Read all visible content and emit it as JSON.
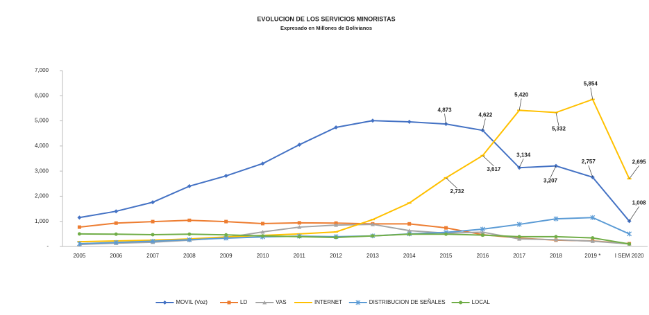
{
  "chart_data": {
    "type": "line",
    "title": "EVOLUCION DE LOS SERVICIOS MINORISTAS",
    "subtitle": "Expresado en Millones  de Bolivianos",
    "categories": [
      "2005",
      "2006",
      "2007",
      "2008",
      "2009",
      "2010",
      "2011",
      "2012",
      "2013",
      "2014",
      "2015",
      "2016",
      "2017",
      "2018",
      "2019 *",
      "I SEM 2020"
    ],
    "ylim": [
      0,
      7000
    ],
    "yticks": [
      {
        "value": 0,
        "label": "-"
      },
      {
        "value": 1000,
        "label": "1,000"
      },
      {
        "value": 2000,
        "label": "2,000"
      },
      {
        "value": 3000,
        "label": "3,000"
      },
      {
        "value": 4000,
        "label": "4,000"
      },
      {
        "value": 5000,
        "label": "5,000"
      },
      {
        "value": 6000,
        "label": "6,000"
      },
      {
        "value": 7000,
        "label": "7,000"
      }
    ],
    "legend": "bottom",
    "series": [
      {
        "name": "MOVIL (Voz)",
        "color": "#4472c4",
        "marker": "diamond",
        "values": [
          1150,
          1400,
          1760,
          2400,
          2810,
          3300,
          4050,
          4740,
          5010,
          4960,
          4873,
          4622,
          3134,
          3207,
          2757,
          1008
        ],
        "value_labels": [
          null,
          null,
          null,
          null,
          null,
          null,
          null,
          null,
          null,
          null,
          "4,873",
          "4,622",
          "3,134",
          "3,207",
          "2,757",
          "1,008"
        ]
      },
      {
        "name": "LD",
        "color": "#ed7d31",
        "marker": "square",
        "values": [
          770,
          930,
          990,
          1040,
          990,
          910,
          940,
          930,
          900,
          900,
          740,
          470,
          330,
          250,
          220,
          110
        ]
      },
      {
        "name": "VAS",
        "color": "#a5a5a5",
        "marker": "triangle",
        "values": [
          80,
          130,
          170,
          250,
          350,
          580,
          770,
          850,
          880,
          630,
          530,
          570,
          300,
          270,
          210,
          100
        ]
      },
      {
        "name": "INTERNET",
        "color": "#ffc000",
        "marker": "dash",
        "values": [
          190,
          220,
          250,
          300,
          380,
          440,
          500,
          580,
          1070,
          1730,
          2732,
          3617,
          5420,
          5332,
          5854,
          2695
        ],
        "value_labels": [
          null,
          null,
          null,
          null,
          null,
          null,
          null,
          null,
          null,
          null,
          "2,732",
          "3,617",
          "5,420",
          "5,332",
          "5,854",
          "2,695"
        ]
      },
      {
        "name": "DISTRIBUCION DE SEÑALES",
        "color": "#5b9bd5",
        "marker": "star",
        "values": [
          110,
          160,
          210,
          270,
          330,
          380,
          410,
          390,
          420,
          500,
          560,
          690,
          880,
          1100,
          1150,
          500
        ]
      },
      {
        "name": "LOCAL",
        "color": "#70ad47",
        "marker": "circle",
        "values": [
          500,
          490,
          470,
          490,
          460,
          420,
          390,
          360,
          420,
          490,
          490,
          450,
          390,
          390,
          340,
          100
        ]
      }
    ]
  }
}
